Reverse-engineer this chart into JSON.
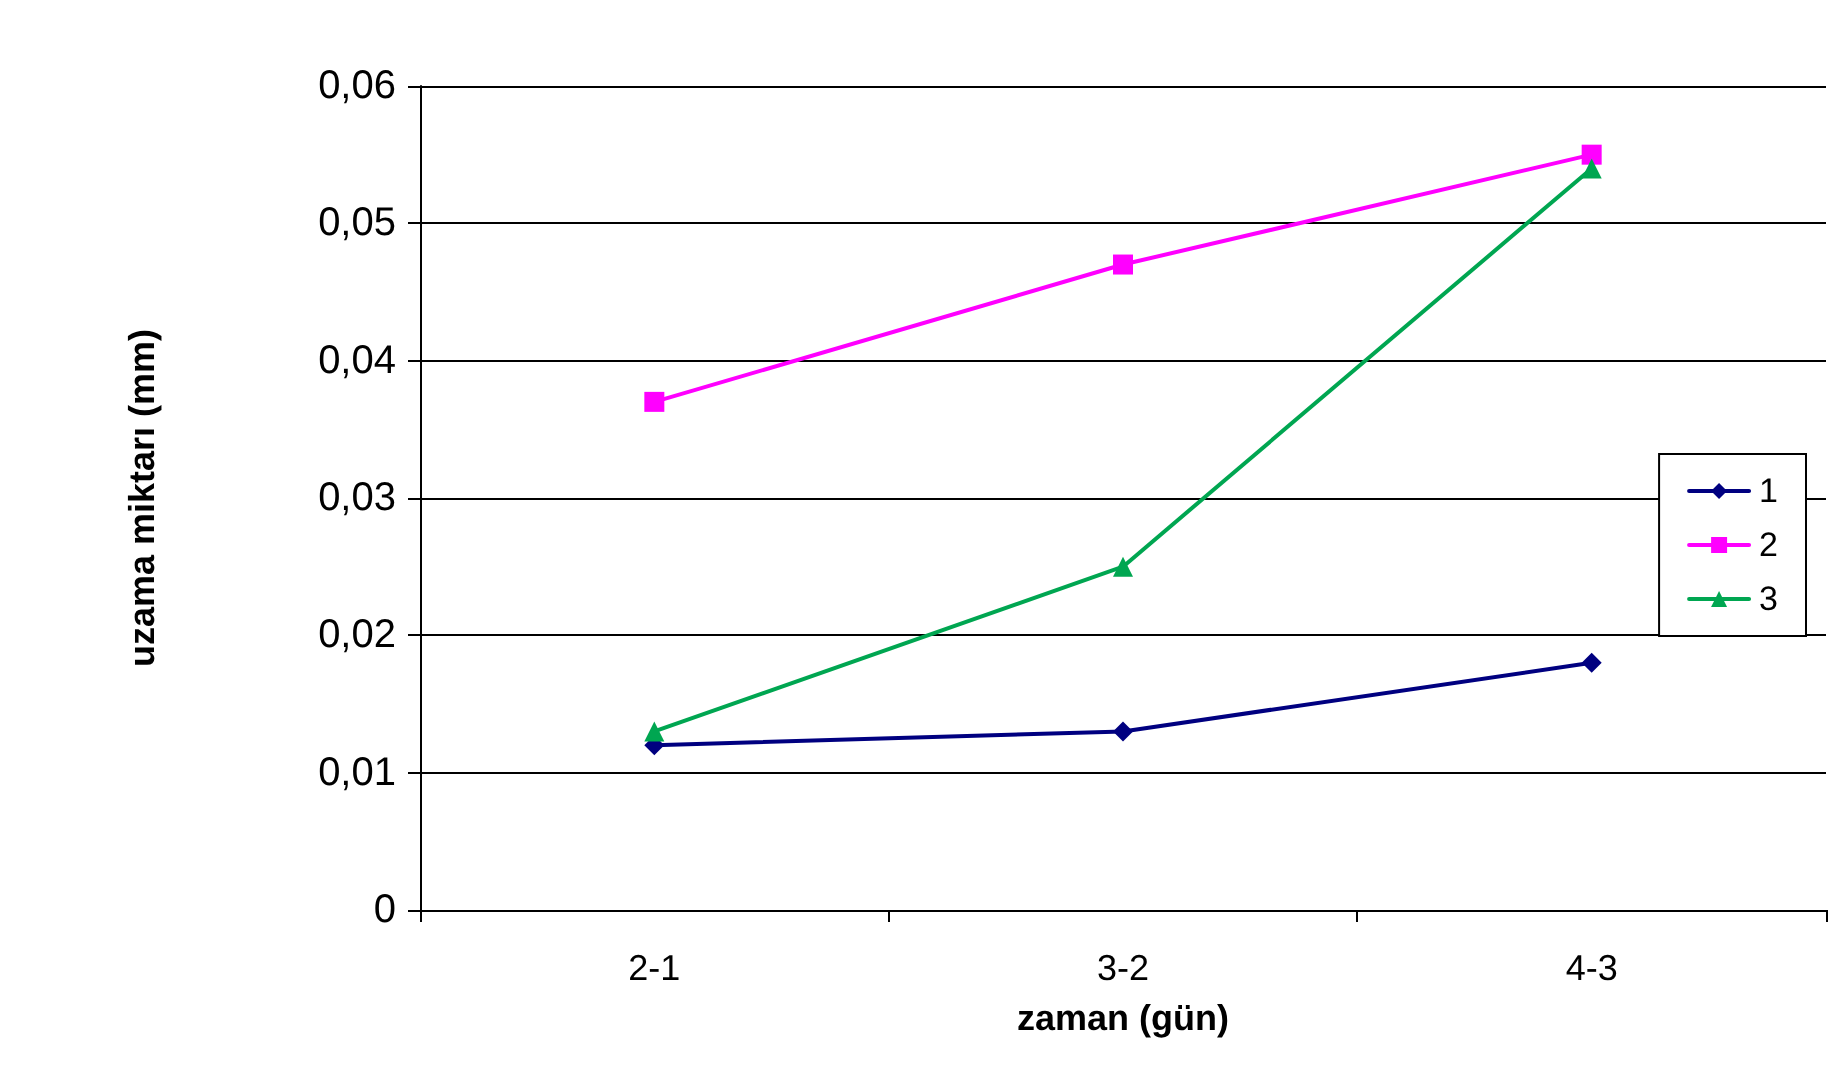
{
  "chart_data": {
    "type": "line",
    "xlabel": "zaman (gün)",
    "ylabel": "uzama miktarı (mm)",
    "categories": [
      "2-1",
      "3-2",
      "4-3"
    ],
    "series": [
      {
        "name": "1",
        "color": "#000080",
        "marker": "diamond",
        "values": [
          0.012,
          0.013,
          0.018
        ]
      },
      {
        "name": "2",
        "color": "#ff00ff",
        "marker": "square",
        "values": [
          0.037,
          0.047,
          0.055
        ]
      },
      {
        "name": "3",
        "color": "#00a651",
        "marker": "triangle",
        "values": [
          0.013,
          0.025,
          0.054
        ]
      }
    ],
    "ylim": [
      0,
      0.06
    ],
    "yticks": [
      {
        "value": 0,
        "label": "0"
      },
      {
        "value": 0.01,
        "label": "0,01"
      },
      {
        "value": 0.02,
        "label": "0,02"
      },
      {
        "value": 0.03,
        "label": "0,03"
      },
      {
        "value": 0.04,
        "label": "0,04"
      },
      {
        "value": 0.05,
        "label": "0,05"
      },
      {
        "value": 0.06,
        "label": "0,06"
      }
    ],
    "grid": "y",
    "legend": "right",
    "line_style": "solid"
  }
}
